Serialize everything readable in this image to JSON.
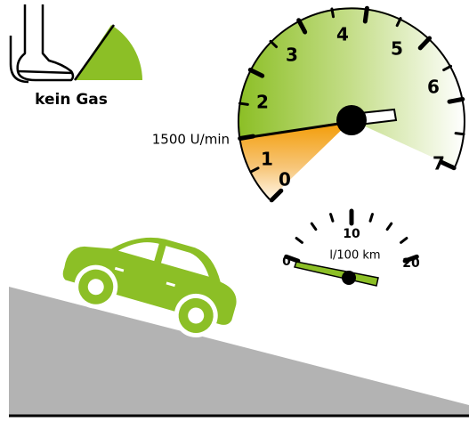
{
  "pedal": {
    "label": "kein Gas"
  },
  "tachometer": {
    "rpm_label": "1500 U/min",
    "scale_labels": [
      "0",
      "1",
      "2",
      "3",
      "4",
      "5",
      "6",
      "7"
    ]
  },
  "fuel_gauge": {
    "unit_label": "l/100 km",
    "scale_labels": [
      "0",
      "10",
      "20"
    ]
  }
}
